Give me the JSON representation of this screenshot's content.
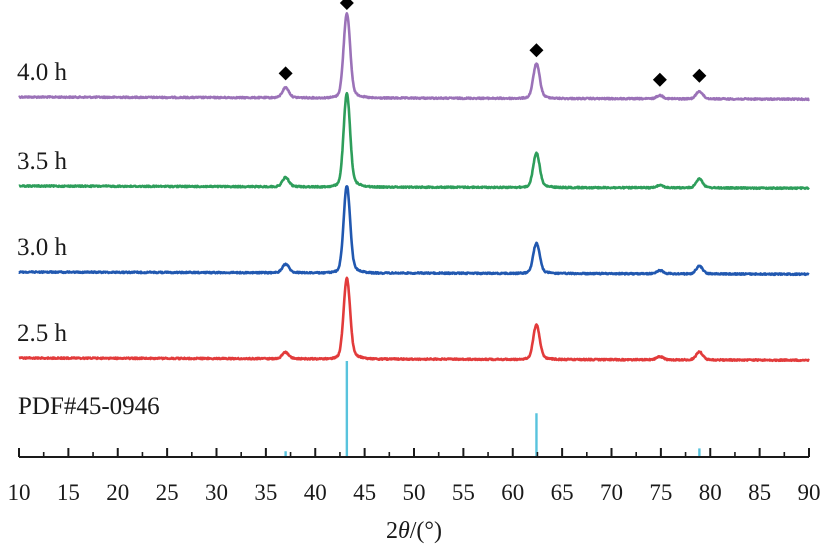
{
  "chart_data": {
    "type": "line",
    "xlabel": {
      "prefix": "2",
      "theta": "θ",
      "suffix": "/(°)"
    },
    "xlim": [
      10,
      90
    ],
    "xticks": [
      10,
      15,
      20,
      25,
      30,
      35,
      40,
      45,
      50,
      55,
      60,
      65,
      70,
      75,
      80,
      85,
      90
    ],
    "grid": false,
    "peak_marker": "diamond",
    "peak_marker_series": "4.0 h",
    "peak_markers_x": [
      37.0,
      43.2,
      62.4,
      74.9,
      78.9
    ],
    "series": [
      {
        "name": "4.0 h",
        "color": "#9b72b8",
        "peaks": [
          {
            "x": 37.0,
            "h": 0.12
          },
          {
            "x": 43.2,
            "h": 1.0
          },
          {
            "x": 62.4,
            "h": 0.41
          },
          {
            "x": 74.9,
            "h": 0.04
          },
          {
            "x": 78.9,
            "h": 0.09
          }
        ]
      },
      {
        "name": "3.5 h",
        "color": "#2e9e5b",
        "peaks": [
          {
            "x": 37.0,
            "h": 0.1
          },
          {
            "x": 43.2,
            "h": 1.0
          },
          {
            "x": 62.4,
            "h": 0.37
          },
          {
            "x": 74.9,
            "h": 0.03
          },
          {
            "x": 78.9,
            "h": 0.1
          }
        ]
      },
      {
        "name": "3.0 h",
        "color": "#2158b0",
        "peaks": [
          {
            "x": 37.0,
            "h": 0.1
          },
          {
            "x": 43.2,
            "h": 1.0
          },
          {
            "x": 62.4,
            "h": 0.35
          },
          {
            "x": 74.9,
            "h": 0.04
          },
          {
            "x": 78.9,
            "h": 0.09
          }
        ]
      },
      {
        "name": "2.5 h",
        "color": "#e23b3b",
        "peaks": [
          {
            "x": 37.0,
            "h": 0.08
          },
          {
            "x": 43.2,
            "h": 1.0
          },
          {
            "x": 62.4,
            "h": 0.43
          },
          {
            "x": 74.9,
            "h": 0.04
          },
          {
            "x": 78.9,
            "h": 0.1
          }
        ]
      }
    ],
    "reference": {
      "name": "PDF#45-0946",
      "color": "#58c3dd",
      "lines": [
        {
          "x": 37.0,
          "h": 0.05
        },
        {
          "x": 43.2,
          "h": 1.0
        },
        {
          "x": 62.4,
          "h": 0.45
        },
        {
          "x": 78.9,
          "h": 0.08
        }
      ]
    }
  }
}
